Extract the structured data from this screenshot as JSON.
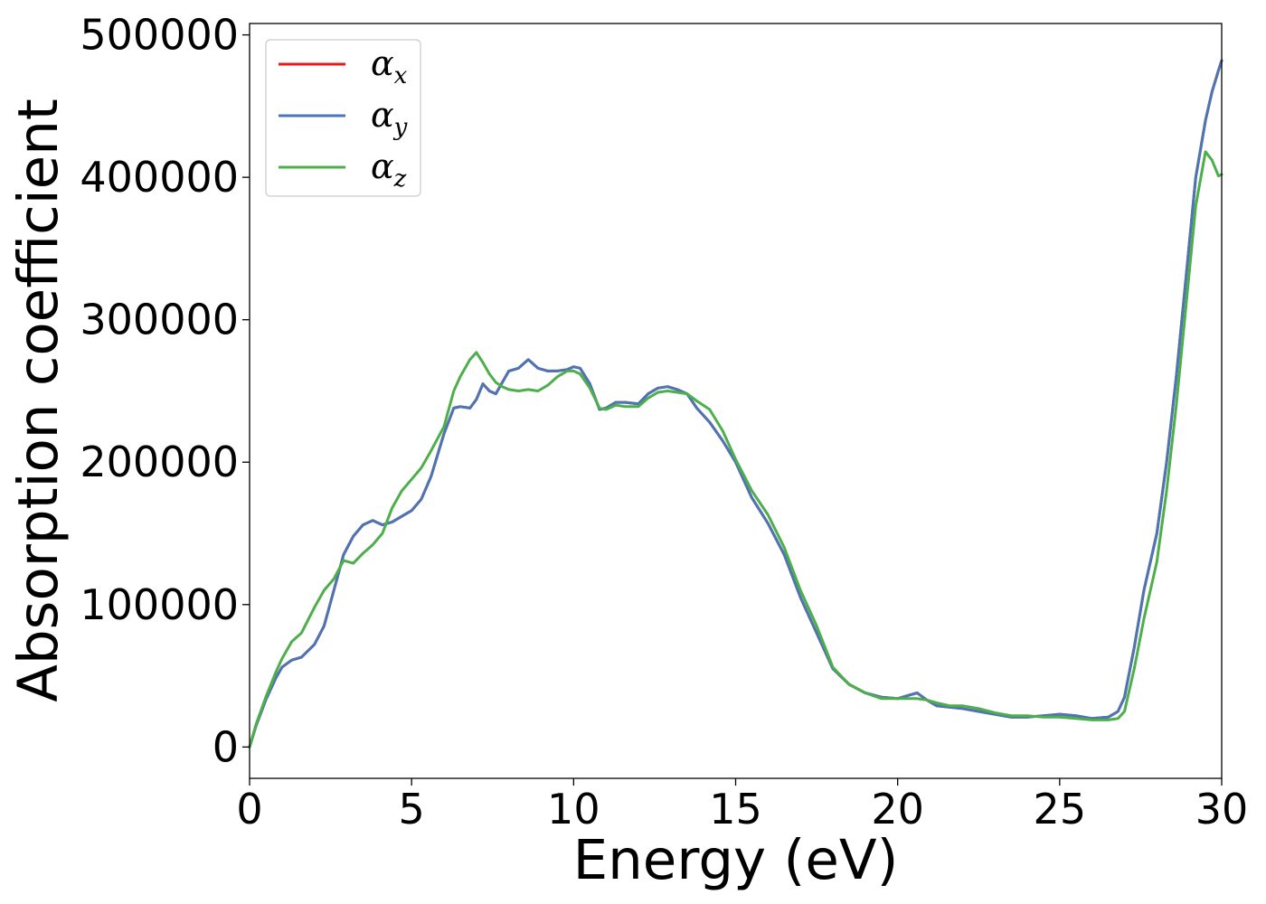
{
  "chart_data": {
    "type": "line",
    "title": "",
    "xlabel": "Energy (eV)",
    "ylabel": "Absorption coefficient",
    "xlim": [
      0,
      30
    ],
    "ylim": [
      -22000,
      508000
    ],
    "xticks": [
      0,
      5,
      10,
      15,
      20,
      25,
      30
    ],
    "xtick_labels": [
      "0",
      "5",
      "10",
      "15",
      "20",
      "25",
      "30"
    ],
    "yticks": [
      0,
      100000,
      200000,
      300000,
      400000,
      500000
    ],
    "ytick_labels": [
      "0",
      "100000",
      "200000",
      "300000",
      "400000",
      "500000"
    ],
    "grid": false,
    "legend_position": "top-left",
    "series": [
      {
        "name": "α",
        "subscript": "x",
        "color": "#e41a1c",
        "x": [
          0,
          0.2,
          0.5,
          0.8,
          1.0,
          1.3,
          1.6,
          2.0,
          2.3,
          2.6,
          2.9,
          3.2,
          3.5,
          3.8,
          4.1,
          4.4,
          4.7,
          5.0,
          5.3,
          5.6,
          6.0,
          6.3,
          6.5,
          6.8,
          7.0,
          7.2,
          7.4,
          7.6,
          7.8,
          8.0,
          8.3,
          8.6,
          8.9,
          9.2,
          9.5,
          9.8,
          10.0,
          10.2,
          10.5,
          10.8,
          11.0,
          11.3,
          11.6,
          12.0,
          12.3,
          12.6,
          12.9,
          13.2,
          13.5,
          13.8,
          14.2,
          14.6,
          15.0,
          15.5,
          16.0,
          16.5,
          17.0,
          17.5,
          18.0,
          18.5,
          19.0,
          19.5,
          20.0,
          20.3,
          20.6,
          20.9,
          21.2,
          21.6,
          22.0,
          22.5,
          23.0,
          23.5,
          24.0,
          24.5,
          25.0,
          25.5,
          26.0,
          26.5,
          26.8,
          27.0,
          27.3,
          27.6,
          28.0,
          28.3,
          28.6,
          28.9,
          29.2,
          29.5,
          29.7,
          29.9,
          30.0
        ],
        "values": [
          0,
          15000,
          33000,
          48000,
          56000,
          61000,
          63000,
          72000,
          85000,
          110000,
          135000,
          148000,
          156000,
          159000,
          156000,
          158000,
          162000,
          166000,
          174000,
          190000,
          220000,
          238000,
          239000,
          238000,
          244000,
          255000,
          250000,
          248000,
          256000,
          264000,
          266000,
          272000,
          266000,
          264000,
          264000,
          265000,
          267000,
          266000,
          255000,
          237000,
          238000,
          242000,
          242000,
          241000,
          248000,
          252000,
          253000,
          251000,
          248000,
          238000,
          228000,
          215000,
          200000,
          175000,
          157000,
          135000,
          105000,
          80000,
          55000,
          44000,
          38000,
          35000,
          34000,
          36000,
          38000,
          33000,
          29000,
          28000,
          27000,
          25000,
          23000,
          21000,
          21000,
          22000,
          23000,
          22000,
          20000,
          21000,
          25000,
          35000,
          70000,
          110000,
          150000,
          200000,
          260000,
          330000,
          400000,
          440000,
          460000,
          475000,
          482000
        ]
      },
      {
        "name": "α",
        "subscript": "y",
        "color": "#4a76b6",
        "x": [
          0,
          0.2,
          0.5,
          0.8,
          1.0,
          1.3,
          1.6,
          2.0,
          2.3,
          2.6,
          2.9,
          3.2,
          3.5,
          3.8,
          4.1,
          4.4,
          4.7,
          5.0,
          5.3,
          5.6,
          6.0,
          6.3,
          6.5,
          6.8,
          7.0,
          7.2,
          7.4,
          7.6,
          7.8,
          8.0,
          8.3,
          8.6,
          8.9,
          9.2,
          9.5,
          9.8,
          10.0,
          10.2,
          10.5,
          10.8,
          11.0,
          11.3,
          11.6,
          12.0,
          12.3,
          12.6,
          12.9,
          13.2,
          13.5,
          13.8,
          14.2,
          14.6,
          15.0,
          15.5,
          16.0,
          16.5,
          17.0,
          17.5,
          18.0,
          18.5,
          19.0,
          19.5,
          20.0,
          20.3,
          20.6,
          20.9,
          21.2,
          21.6,
          22.0,
          22.5,
          23.0,
          23.5,
          24.0,
          24.5,
          25.0,
          25.5,
          26.0,
          26.5,
          26.8,
          27.0,
          27.3,
          27.6,
          28.0,
          28.3,
          28.6,
          28.9,
          29.2,
          29.5,
          29.7,
          29.9,
          30.0
        ],
        "values": [
          0,
          15000,
          33000,
          48000,
          56000,
          61000,
          63000,
          72000,
          85000,
          110000,
          135000,
          148000,
          156000,
          159000,
          156000,
          158000,
          162000,
          166000,
          174000,
          190000,
          220000,
          238000,
          239000,
          238000,
          244000,
          255000,
          250000,
          248000,
          256000,
          264000,
          266000,
          272000,
          266000,
          264000,
          264000,
          265000,
          267000,
          266000,
          255000,
          237000,
          238000,
          242000,
          242000,
          241000,
          248000,
          252000,
          253000,
          251000,
          248000,
          238000,
          228000,
          215000,
          200000,
          175000,
          157000,
          135000,
          105000,
          80000,
          55000,
          44000,
          38000,
          35000,
          34000,
          36000,
          38000,
          33000,
          29000,
          28000,
          27000,
          25000,
          23000,
          21000,
          21000,
          22000,
          23000,
          22000,
          20000,
          21000,
          25000,
          35000,
          70000,
          110000,
          150000,
          200000,
          260000,
          330000,
          400000,
          440000,
          460000,
          475000,
          482000
        ]
      },
      {
        "name": "α",
        "subscript": "z",
        "color": "#4daf4a",
        "x": [
          0,
          0.2,
          0.5,
          0.8,
          1.0,
          1.3,
          1.6,
          2.0,
          2.3,
          2.6,
          2.9,
          3.2,
          3.5,
          3.8,
          4.1,
          4.4,
          4.7,
          5.0,
          5.3,
          5.6,
          6.0,
          6.3,
          6.5,
          6.8,
          7.0,
          7.2,
          7.4,
          7.6,
          7.8,
          8.0,
          8.3,
          8.6,
          8.9,
          9.2,
          9.5,
          9.8,
          10.0,
          10.2,
          10.5,
          10.8,
          11.0,
          11.3,
          11.6,
          12.0,
          12.3,
          12.6,
          12.9,
          13.2,
          13.5,
          13.8,
          14.2,
          14.6,
          15.0,
          15.5,
          16.0,
          16.5,
          17.0,
          17.5,
          18.0,
          18.5,
          19.0,
          19.5,
          20.0,
          20.3,
          20.6,
          20.9,
          21.2,
          21.6,
          22.0,
          22.5,
          23.0,
          23.5,
          24.0,
          24.5,
          25.0,
          25.5,
          26.0,
          26.5,
          26.8,
          27.0,
          27.3,
          27.6,
          28.0,
          28.3,
          28.6,
          28.9,
          29.2,
          29.5,
          29.7,
          29.9,
          30.0
        ],
        "values": [
          0,
          16000,
          35000,
          52000,
          62000,
          74000,
          80000,
          98000,
          110000,
          118000,
          131000,
          129000,
          136000,
          142000,
          150000,
          168000,
          180000,
          188000,
          196000,
          208000,
          225000,
          250000,
          260000,
          272000,
          277000,
          270000,
          262000,
          256000,
          253000,
          251000,
          250000,
          251000,
          250000,
          254000,
          260000,
          264000,
          264000,
          262000,
          252000,
          238000,
          237000,
          240000,
          239000,
          239000,
          245000,
          249000,
          250000,
          249000,
          248000,
          243000,
          237000,
          222000,
          202000,
          180000,
          163000,
          140000,
          110000,
          85000,
          56000,
          44000,
          38000,
          34000,
          34000,
          34000,
          34000,
          33000,
          31000,
          29000,
          29000,
          27000,
          24000,
          22000,
          22000,
          21000,
          21000,
          20000,
          19000,
          19000,
          20000,
          25000,
          55000,
          90000,
          130000,
          180000,
          240000,
          310000,
          380000,
          418000,
          412000,
          401000,
          402000
        ]
      }
    ]
  }
}
